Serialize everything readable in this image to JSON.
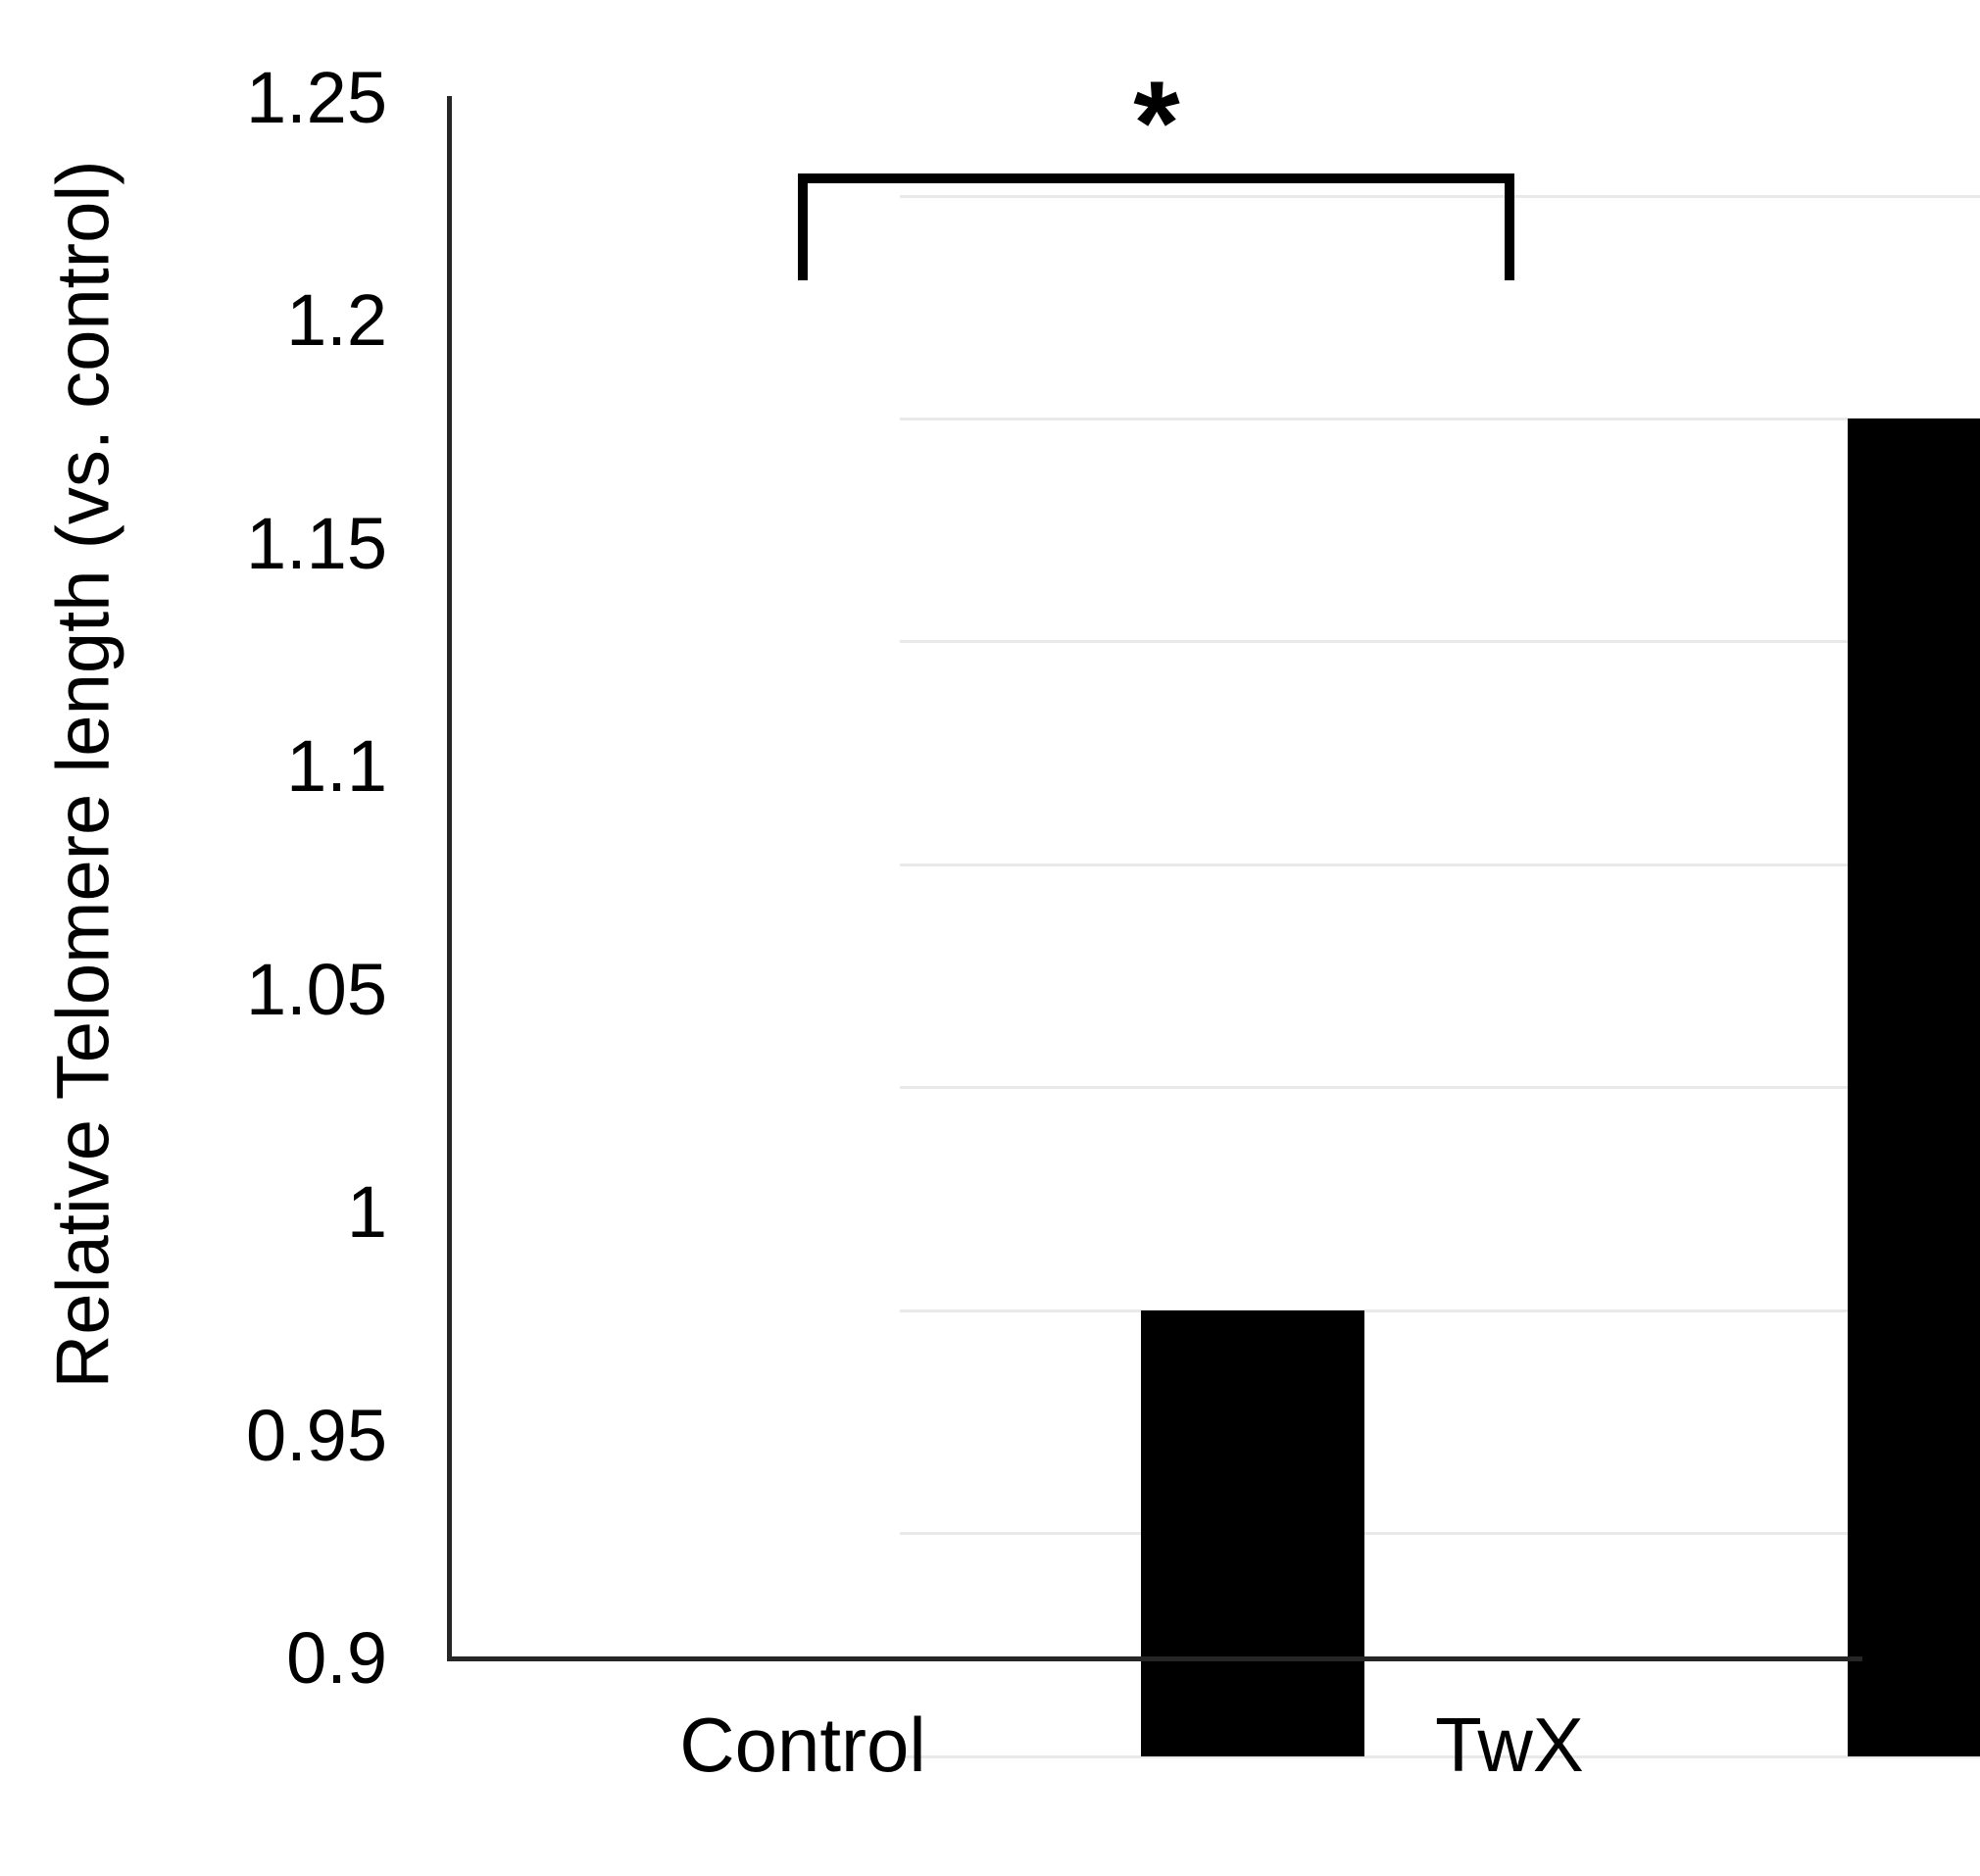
{
  "figure": {
    "background": "#ffffff"
  },
  "chart_data": {
    "type": "bar",
    "title": "",
    "categories": [
      "Control",
      "TwX"
    ],
    "values": [
      1.0,
      1.2
    ],
    "series": [
      {
        "name": "Relative Telomere length",
        "values": [
          1.0,
          1.2
        ]
      }
    ],
    "xlabel": "",
    "ylabel": "Relative Telomere length (vs. control)",
    "ylim": [
      0.9,
      1.25
    ],
    "ytick_step": 0.05,
    "yticks": [
      0.9,
      0.95,
      1.0,
      1.05,
      1.1,
      1.15,
      1.2,
      1.25
    ],
    "ytick_labels": [
      "0.9",
      "0.95",
      "1",
      "1.05",
      "1.1",
      "1.15",
      "1.2",
      "1.25"
    ],
    "grid": true,
    "legend": false,
    "gridline_color": "#e9e9e9",
    "axis_color": "#262626",
    "bar_color": "#000000",
    "text_color": "#000000",
    "annotation": {
      "type": "significance-bracket",
      "label": "*",
      "from_category": "Control",
      "to_category": "TwX",
      "bracket_top_value": 1.233,
      "bracket_bottom_value": 1.209
    }
  }
}
